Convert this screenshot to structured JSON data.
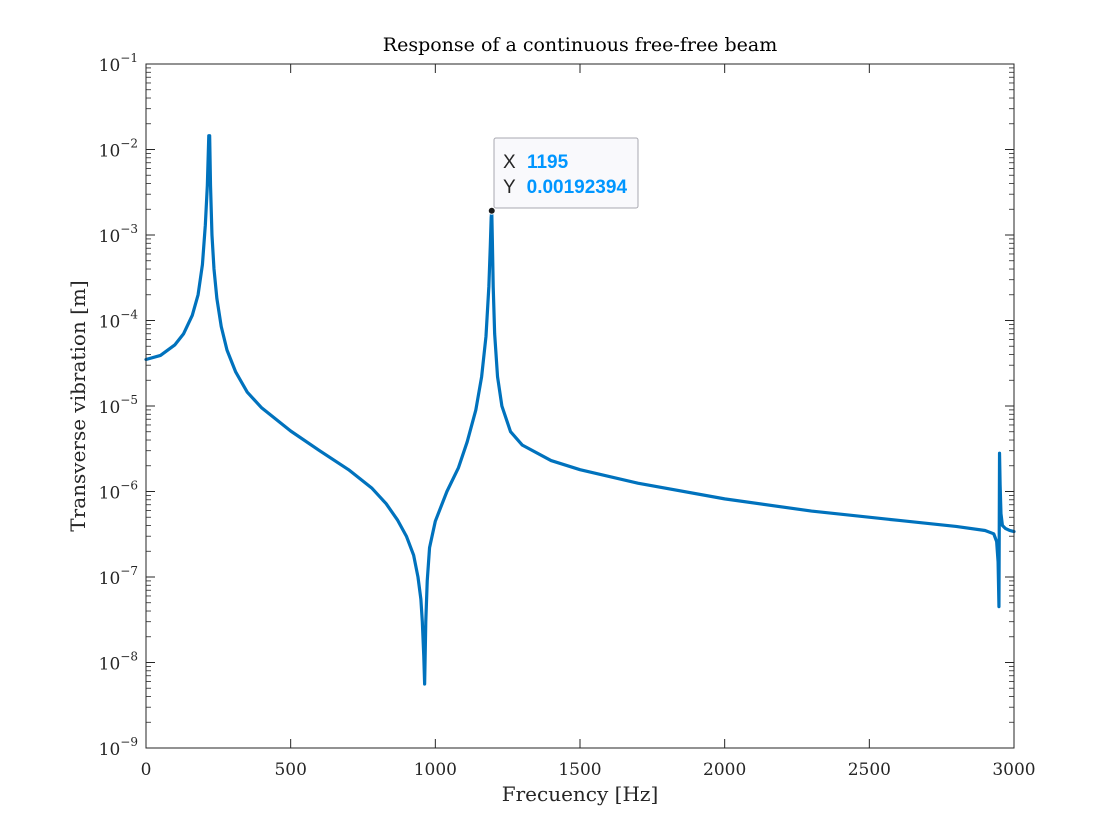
{
  "chart_data": {
    "type": "line",
    "title": "Response of a continuous free-free beam",
    "xlabel": "Frecuency [Hz]",
    "ylabel": "Transverse vibration [m]",
    "xlim": [
      0,
      3000
    ],
    "ylim": [
      1e-09,
      0.1
    ],
    "yscale": "log",
    "grid": false,
    "xticks": [
      0,
      500,
      1000,
      1500,
      2000,
      2500,
      3000
    ],
    "xtick_labels": [
      "0",
      "500",
      "1000",
      "1500",
      "2000",
      "2500",
      "3000"
    ],
    "yticks": [
      1e-09,
      1e-08,
      1e-07,
      1e-06,
      1e-05,
      0.0001,
      0.001,
      0.01,
      0.1
    ],
    "ytick_base": "10",
    "ytick_exponents": [
      "−9",
      "−8",
      "−7",
      "−6",
      "−5",
      "−4",
      "−3",
      "−2",
      "−1"
    ],
    "series": [
      {
        "color": "#0072BD",
        "x": [
          0,
          50,
          100,
          130,
          160,
          180,
          195,
          205,
          212,
          217,
          220,
          223,
          228,
          235,
          245,
          260,
          280,
          310,
          350,
          400,
          500,
          600,
          700,
          780,
          830,
          870,
          900,
          925,
          940,
          950,
          955,
          960,
          963,
          967,
          972,
          980,
          1000,
          1040,
          1080,
          1110,
          1140,
          1160,
          1175,
          1185,
          1190,
          1193,
          1195,
          1197,
          1200,
          1205,
          1215,
          1230,
          1260,
          1300,
          1400,
          1500,
          1700,
          2000,
          2300,
          2600,
          2800,
          2900,
          2930,
          2940,
          2945,
          2948,
          2950,
          2952,
          2955,
          2960,
          2970,
          2985,
          3000
        ],
        "y": [
          3.5e-05,
          3.9e-05,
          5.2e-05,
          7e-05,
          0.000115,
          0.0002,
          0.00045,
          0.0013,
          0.0038,
          0.0145,
          0.0145,
          0.0038,
          0.001,
          0.0004,
          0.00018,
          8.5e-05,
          4.5e-05,
          2.5e-05,
          1.45e-05,
          9.5e-06,
          5.1e-06,
          3e-06,
          1.8e-06,
          1.1e-06,
          7.2e-07,
          4.6e-07,
          3e-07,
          1.8e-07,
          1e-07,
          5.5e-08,
          3e-08,
          1.2e-08,
          5.6e-09,
          3e-08,
          9e-08,
          2.2e-07,
          4.5e-07,
          1e-06,
          1.9e-06,
          3.8e-06,
          9e-06,
          2.2e-05,
          6.5e-05,
          0.00025,
          0.00075,
          0.0016,
          0.00192394,
          0.0009,
          0.00025,
          7e-05,
          2.2e-05,
          1e-05,
          5e-06,
          3.5e-06,
          2.3e-06,
          1.8e-06,
          1.25e-06,
          8.2e-07,
          5.9e-07,
          4.6e-07,
          3.9e-07,
          3.5e-07,
          3.2e-07,
          2.6e-07,
          1.5e-07,
          4.5e-08,
          2.8e-06,
          1.2e-06,
          5.5e-07,
          4e-07,
          3.7e-07,
          3.5e-07,
          3.4e-07
        ]
      }
    ]
  },
  "datatip": {
    "x_label": "X",
    "x_value": "1195",
    "y_label": "Y",
    "y_value": "0.00192394",
    "x": 1195,
    "y": 0.00192394,
    "label_color": "#262626",
    "value_color": "#0096FF"
  }
}
